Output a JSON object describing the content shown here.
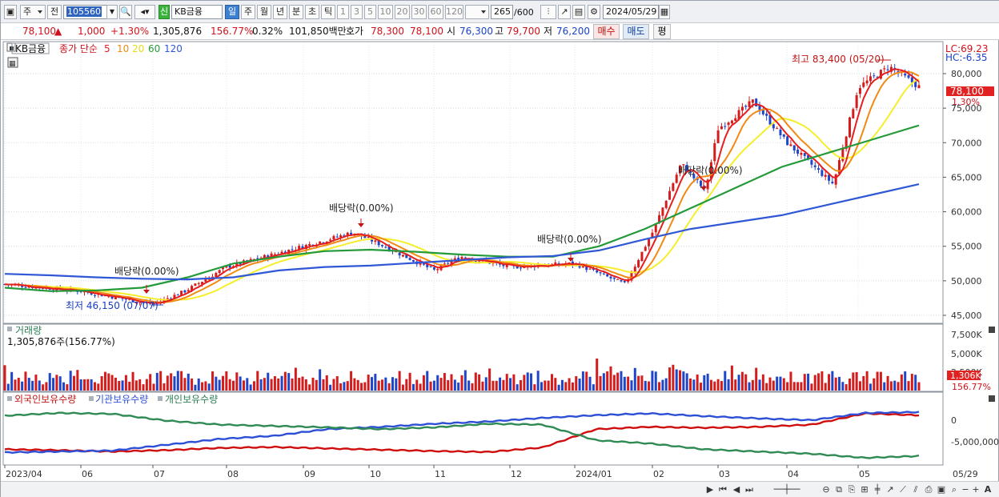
{
  "toolbar": {
    "market": "주",
    "prev": "전",
    "code": "105560",
    "stock_name": "KB금융",
    "new_badge": "신",
    "periods": [
      "일",
      "주",
      "월",
      "년",
      "분",
      "초",
      "틱"
    ],
    "numbers": [
      "1",
      "3",
      "5",
      "10",
      "20",
      "30",
      "60",
      "120"
    ],
    "count": "265",
    "count_max": "/600",
    "date": "2024/05/29"
  },
  "quote": {
    "price": "78,100",
    "change": "1,000",
    "change_pct": "+1.30%",
    "volume": "1,305,876",
    "vol_ratio": "156.77%",
    "turnover": "0.32%",
    "amount": "101,850백만",
    "hoga_label": "호가",
    "ask": "78,300",
    "bid": "78,100",
    "open_label": "시",
    "open": "76,300",
    "high_label": "고",
    "high": "79,700",
    "low_label": "저",
    "low": "76,200",
    "buy": "매수",
    "sell": "매도",
    "eq": "평"
  },
  "main_chart": {
    "stock": "KB금융",
    "legend_prefix": "종가 단순",
    "ma_periods": [
      "5",
      "10",
      "20",
      "60",
      "120"
    ],
    "lc": "LC:69.23",
    "hc": "HC:-6.35",
    "high_note": "최고 83,400 (05/20)",
    "low_note": "최저 46,150 (07/07)",
    "dividend_notes": [
      "배당락(0.00%)",
      "배당락(0.00%)",
      "배당락(0.00%)",
      "배당락(0.00%)"
    ],
    "current_price": "78,100",
    "current_pct": "1.30%",
    "y_ticks": [
      "80,000",
      "75,000",
      "70,000",
      "65,000",
      "60,000",
      "55,000",
      "50,000",
      "45,000"
    ]
  },
  "volume_chart": {
    "title": "거래량",
    "value": "1,305,876주(156.77%)",
    "y_ticks": [
      "7,500K",
      "5,000K",
      "2,500K"
    ],
    "current": "1,306K",
    "current_pct": "156.77%"
  },
  "holding_chart": {
    "series": [
      "외국인보유수량",
      "기관보유수량",
      "개인보유수량"
    ],
    "y_ticks": [
      "0",
      "-5,000,000"
    ]
  },
  "x_axis": [
    "2023/04",
    "06",
    "07",
    "08",
    "09",
    "10",
    "11",
    "12",
    "2024/01",
    "02",
    "03",
    "04",
    "05",
    "05/29"
  ],
  "colors": {
    "ma5": "#e51e1e",
    "ma10": "#f08a13",
    "ma20": "#f5ee2a",
    "ma60": "#249a3a",
    "ma120": "#2f57d6",
    "up": "#d41c1c",
    "down": "#1f46c8",
    "foreign": "#d00d0d",
    "inst": "#2d4fd6",
    "indiv": "#2f8a53"
  },
  "chart_data": [
    {
      "type": "candlestick",
      "title": "KB금융",
      "price_ylim": [
        44000,
        84500
      ],
      "x_dates": [
        "2023/04",
        "06",
        "07",
        "08",
        "09",
        "10",
        "11",
        "12",
        "2024/01",
        "02",
        "03",
        "04",
        "05",
        "05/29"
      ],
      "close_path": [
        [
          "2023/04",
          49500
        ],
        [
          "06",
          48500
        ],
        [
          "07",
          46600
        ],
        [
          "07/mid",
          48500
        ],
        [
          "08",
          52000
        ],
        [
          "09",
          55000
        ],
        [
          "10",
          57000
        ],
        [
          "10/mid",
          55500
        ],
        [
          "11",
          51500
        ],
        [
          "11/mid",
          53500
        ],
        [
          "12",
          52000
        ],
        [
          "2024/01",
          52500
        ],
        [
          "01/mid",
          49500
        ],
        [
          "02",
          57000
        ],
        [
          "02/mid",
          67000
        ],
        [
          "02/end",
          63000
        ],
        [
          "03",
          72000
        ],
        [
          "03/mid",
          76000
        ],
        [
          "04",
          70000
        ],
        [
          "04/mid",
          64000
        ],
        [
          "05",
          78000
        ],
        [
          "05/20",
          81000
        ],
        [
          "05/29",
          78100
        ]
      ],
      "ma60_path": [
        49000,
        48500,
        48600,
        49000,
        50500,
        52500,
        53500,
        54300,
        54500,
        54200,
        53800,
        53500,
        53500,
        55000,
        57500,
        60500,
        63500,
        66500,
        68500,
        70500,
        72500
      ],
      "ma120_path": [
        51000,
        50800,
        50500,
        50300,
        50200,
        50500,
        51500,
        52000,
        52200,
        52600,
        53000,
        53400,
        53600,
        54400,
        56000,
        57500,
        58500,
        59500,
        61000,
        62500,
        64000
      ],
      "dividend_markers": [
        "07",
        "10",
        "2024/01",
        "02"
      ],
      "high": {
        "label": "최고",
        "value": 83400,
        "date": "05/20"
      },
      "low": {
        "label": "최저",
        "value": 46150,
        "date": "07/07"
      }
    },
    {
      "type": "bar",
      "title": "거래량",
      "ylim": [
        0,
        9000000
      ],
      "series": [
        {
          "name": "거래량",
          "typical": 2200000,
          "spikes": [
            [
              "2024/01",
              5000000
            ],
            [
              "02",
              6000000
            ],
            [
              "02",
              9000000
            ],
            [
              "05/29",
              1305876
            ]
          ]
        }
      ]
    },
    {
      "type": "line",
      "series": [
        {
          "name": "외국인보유수량",
          "values": [
            -6500000,
            -6700000,
            -7000000,
            -6700000,
            -6200000,
            -6000000,
            -6300000,
            -6600000,
            -6900000,
            -7100000,
            -6100000,
            -2000000,
            -1500000,
            -1700000,
            -1500000,
            -1000000,
            1500000,
            1100000
          ]
        },
        {
          "name": "기관보유수량",
          "values": [
            -7200000,
            -7000000,
            -6800000,
            -5500000,
            -4200000,
            -3500000,
            -2000000,
            -1500000,
            -800000,
            -300000,
            500000,
            1100000,
            1500000,
            900000,
            400000,
            0,
            1600000,
            1800000
          ]
        },
        {
          "name": "개인보유수량",
          "values": [
            1000000,
            1600000,
            1400000,
            -100000,
            -1000000,
            -1300000,
            -1600000,
            -2000000,
            -1600000,
            -800000,
            -1000000,
            -4500000,
            -5200000,
            -6500000,
            -7000000,
            -7500000,
            -8400000,
            -8000000
          ]
        }
      ],
      "y_ticks": [
        "0",
        "-5,000,000"
      ]
    }
  ]
}
